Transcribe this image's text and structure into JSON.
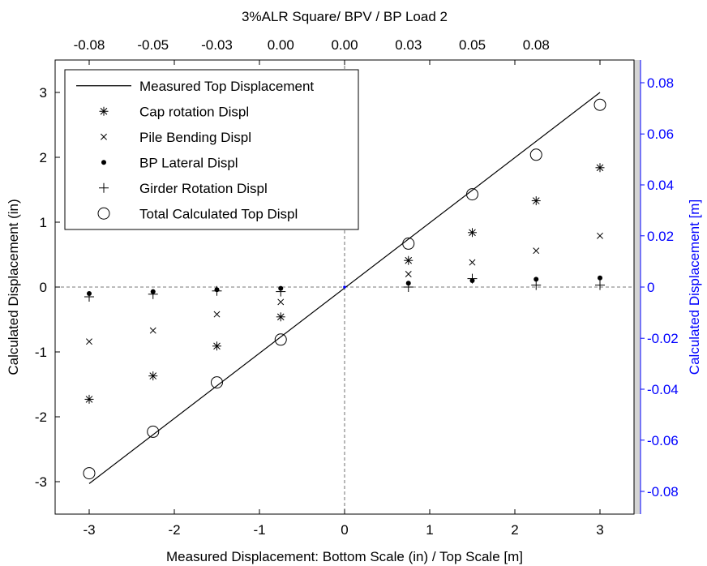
{
  "chart_data": {
    "type": "scatter",
    "title": "3%ALR Square/ BPV / BP Load 2",
    "xlabel": "Measured Displacement: Bottom Scale (in) / Top Scale [m]",
    "ylabel": "Calculated Displacement (in)",
    "ylabel_right": "Calculated Displacement [m]",
    "xlim": [
      -3.4,
      3.4
    ],
    "ylim": [
      -3.5,
      3.5
    ],
    "x_ticks": [
      "-3",
      "-2",
      "-1",
      "0",
      "1",
      "2",
      "3"
    ],
    "y_ticks": [
      "-3",
      "-2",
      "-1",
      "0",
      "1",
      "2",
      "3"
    ],
    "top_ticks": [
      {
        "at": -3,
        "label": "-0.08"
      },
      {
        "at": -2.25,
        "label": "-0.05"
      },
      {
        "at": -1.5,
        "label": "-0.03"
      },
      {
        "at": -0.75,
        "label": "0.00"
      },
      {
        "at": 0,
        "label": "0.00"
      },
      {
        "at": 0.75,
        "label": "0.03"
      },
      {
        "at": 1.5,
        "label": "0.05"
      },
      {
        "at": 2.25,
        "label": "0.08"
      }
    ],
    "right_ticks": [
      {
        "at": -3.15,
        "label": "-0.08"
      },
      {
        "at": -2.36,
        "label": "-0.06"
      },
      {
        "at": -1.575,
        "label": "-0.04"
      },
      {
        "at": -0.79,
        "label": "-0.02"
      },
      {
        "at": 0,
        "label": "0"
      },
      {
        "at": 0.79,
        "label": "0.02"
      },
      {
        "at": 1.575,
        "label": "0.04"
      },
      {
        "at": 2.36,
        "label": "0.06"
      },
      {
        "at": 3.15,
        "label": "0.08"
      }
    ],
    "grid": false,
    "reference_lines": {
      "x": 0,
      "y": 0,
      "style": "dashed"
    },
    "legend_position": "top-left",
    "x": [
      -3.0,
      -2.25,
      -1.5,
      -0.75,
      0.75,
      1.5,
      2.25,
      3.0
    ],
    "measured_line": {
      "name": "Measured Top Displacement",
      "x": [
        -3.0,
        3.0
      ],
      "y": [
        -3.03,
        3.0
      ]
    },
    "series": [
      {
        "name": "Cap rotation Displ",
        "marker": "asterisk",
        "values": [
          -1.73,
          -1.37,
          -0.91,
          -0.46,
          0.41,
          0.84,
          1.33,
          1.84
        ]
      },
      {
        "name": "Pile Bending Displ",
        "marker": "cross",
        "values": [
          -0.84,
          -0.67,
          -0.42,
          -0.23,
          0.2,
          0.38,
          0.56,
          0.79
        ]
      },
      {
        "name": "BP Lateral Displ",
        "marker": "dot",
        "values": [
          -0.1,
          -0.07,
          -0.04,
          -0.02,
          0.06,
          0.1,
          0.12,
          0.14
        ]
      },
      {
        "name": "Girder Rotation Displ",
        "marker": "plus",
        "values": [
          -0.15,
          -0.11,
          -0.06,
          -0.07,
          0.0,
          0.13,
          0.03,
          0.03
        ]
      },
      {
        "name": "Total Calculated Top Displ",
        "marker": "circle",
        "values": [
          -2.87,
          -2.23,
          -1.47,
          -0.81,
          0.67,
          1.43,
          2.04,
          2.81
        ]
      }
    ],
    "colors": {
      "axes": "#000000",
      "right_axis": "#0000ff",
      "scrollbar": "#d4d4d4"
    }
  }
}
